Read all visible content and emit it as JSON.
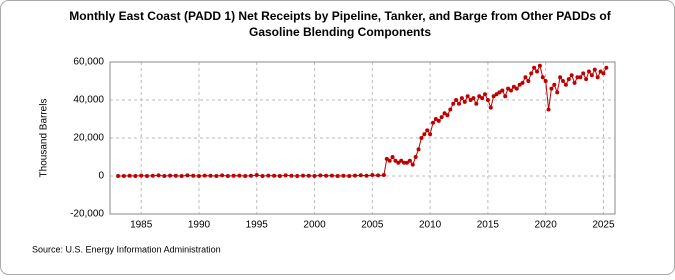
{
  "chart_data": {
    "type": "line",
    "title": "Monthly East Coast (PADD 1) Net Receipts by Pipeline, Tanker, and Barge from Other PADDs of",
    "subtitle": "Gasoline Blending Components",
    "y_label": "Thousand Barrels",
    "source": "Source: U.S. Energy Information Administration",
    "x": [
      1983,
      1983.5,
      1984,
      1984.5,
      1985,
      1985.5,
      1986,
      1986.5,
      1987,
      1987.5,
      1988,
      1988.5,
      1989,
      1989.5,
      1990,
      1990.5,
      1991,
      1991.5,
      1992,
      1992.5,
      1993,
      1993.5,
      1994,
      1994.5,
      1995,
      1995.5,
      1996,
      1996.5,
      1997,
      1997.5,
      1998,
      1998.5,
      1999,
      1999.5,
      2000,
      2000.5,
      2001,
      2001.5,
      2002,
      2002.5,
      2003,
      2003.5,
      2004,
      2004.5,
      2005,
      2005.5,
      2006,
      2006.25,
      2006.5,
      2006.75,
      2007,
      2007.25,
      2007.5,
      2007.75,
      2008,
      2008.25,
      2008.5,
      2008.75,
      2009,
      2009.25,
      2009.5,
      2009.75,
      2010,
      2010.25,
      2010.5,
      2010.75,
      2011,
      2011.25,
      2011.5,
      2011.75,
      2012,
      2012.25,
      2012.5,
      2012.75,
      2013,
      2013.25,
      2013.5,
      2013.75,
      2014,
      2014.25,
      2014.5,
      2014.75,
      2015,
      2015.25,
      2015.5,
      2015.75,
      2016,
      2016.25,
      2016.5,
      2016.75,
      2017,
      2017.25,
      2017.5,
      2017.75,
      2018,
      2018.25,
      2018.5,
      2018.75,
      2019,
      2019.25,
      2019.5,
      2019.75,
      2020,
      2020.25,
      2020.5,
      2020.75,
      2021,
      2021.25,
      2021.5,
      2021.75,
      2022,
      2022.25,
      2022.5,
      2022.75,
      2023,
      2023.25,
      2023.5,
      2023.75,
      2024,
      2024.25,
      2024.5,
      2024.75,
      2025,
      2025.25
    ],
    "series": [
      {
        "name": "Net Receipts",
        "color": "#bf0000",
        "values": [
          0,
          0,
          100,
          0,
          200,
          0,
          100,
          300,
          0,
          200,
          100,
          0,
          300,
          100,
          0,
          200,
          100,
          0,
          300,
          0,
          100,
          200,
          0,
          100,
          500,
          0,
          200,
          100,
          0,
          300,
          100,
          0,
          200,
          100,
          0,
          300,
          100,
          200,
          0,
          100,
          0,
          200,
          400,
          100,
          500,
          300,
          500,
          9000,
          8000,
          10000,
          8000,
          7000,
          8000,
          7000,
          7000,
          8000,
          6000,
          10000,
          14000,
          20000,
          22000,
          24000,
          22000,
          28000,
          30000,
          29000,
          31000,
          33000,
          32000,
          35000,
          38000,
          40000,
          38000,
          41000,
          39000,
          42000,
          40000,
          41000,
          38000,
          42000,
          41000,
          43000,
          40000,
          36000,
          42000,
          43000,
          44000,
          45000,
          42000,
          46000,
          45000,
          47000,
          46000,
          48000,
          49000,
          52000,
          50000,
          54000,
          57000,
          55000,
          58000,
          52000,
          50000,
          35000,
          46000,
          48000,
          44000,
          52000,
          50000,
          48000,
          51000,
          53000,
          49000,
          52000,
          52000,
          54000,
          51000,
          55000,
          53000,
          56000,
          52000,
          55000,
          54000,
          57000
        ]
      }
    ],
    "xlim": [
      1982.3,
      2026
    ],
    "xticks": [
      1985,
      1990,
      1995,
      2000,
      2005,
      2010,
      2015,
      2020,
      2025
    ],
    "ylim": [
      -20000,
      60000
    ],
    "yticks": [
      {
        "value": -20000,
        "label": "-20,000"
      },
      0,
      {
        "value": 20000,
        "label": "20,000"
      },
      {
        "value": 40000,
        "label": "40,000"
      },
      {
        "value": 60000,
        "label": "60,000"
      }
    ],
    "grid": true
  }
}
